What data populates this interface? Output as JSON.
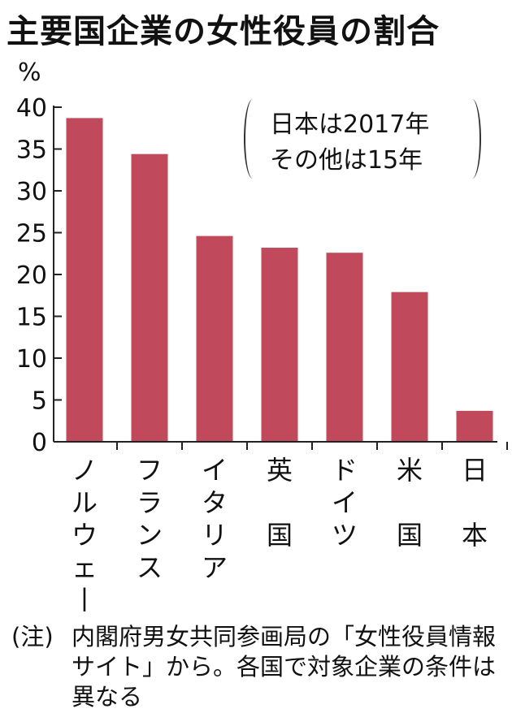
{
  "title": "主要国企業の女性役員の割合",
  "unit": "%",
  "note": {
    "line1": "日本は2017年",
    "line2": "その他は15年"
  },
  "footnote": {
    "prefix": "(注)",
    "text": "内閣府男女共同参画局の「女性役員情報サイト」から。各国で対象企業の条件は異なる"
  },
  "colors": {
    "bar": "#c04a5c",
    "axis": "#222222",
    "text": "#111111"
  },
  "chart_data": {
    "type": "bar",
    "title": "主要国企業の女性役員の割合",
    "xlabel": "",
    "ylabel": "%",
    "ylim": [
      0,
      40
    ],
    "yticks": [
      0,
      5,
      10,
      15,
      20,
      25,
      30,
      35,
      40
    ],
    "categories": [
      "ノルウェー",
      "フランス",
      "イタリア",
      "英国",
      "ドイツ",
      "米国",
      "日本"
    ],
    "values": [
      38.7,
      34.4,
      24.6,
      23.2,
      22.6,
      17.9,
      3.7
    ],
    "grid": false,
    "legend": "none"
  }
}
